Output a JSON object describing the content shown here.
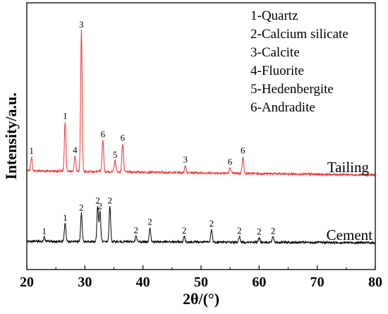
{
  "chart_data": {
    "type": "line",
    "xlabel": "2θ/(°)",
    "ylabel": "Intensity/a.u.",
    "xlim": [
      20,
      80
    ],
    "x_ticks": [
      "20",
      "30",
      "40",
      "50",
      "60",
      "70",
      "80"
    ],
    "y_ticks_visible": false,
    "grid": false,
    "legend": {
      "placement": "top-right",
      "entries": [
        "1-Quartz",
        "2-Calcium silicate",
        "3-Calcite",
        "4-Fluorite",
        "5-Hedenbergite",
        "6-Andradite"
      ]
    },
    "series": [
      {
        "name": "Tailing",
        "color": "#ee3333",
        "baseline_start": 14,
        "baseline_end": 8,
        "peaks": [
          {
            "x": 20.8,
            "height": 20,
            "label": "1"
          },
          {
            "x": 26.6,
            "height": 70,
            "label": "1"
          },
          {
            "x": 28.3,
            "height": 22,
            "label": "4"
          },
          {
            "x": 29.4,
            "height": 200,
            "label": "3"
          },
          {
            "x": 33.1,
            "height": 45,
            "label": "6"
          },
          {
            "x": 35.2,
            "height": 16,
            "label": "5"
          },
          {
            "x": 36.5,
            "height": 40,
            "label": "6"
          },
          {
            "x": 47.3,
            "height": 10,
            "label": "3"
          },
          {
            "x": 55.0,
            "height": 8,
            "label": "6"
          },
          {
            "x": 57.2,
            "height": 24,
            "label": "6"
          }
        ]
      },
      {
        "name": "Cement",
        "color": "#000000",
        "baseline_start": 10,
        "baseline_end": 8,
        "peaks": [
          {
            "x": 23.0,
            "height": 6,
            "label": "1"
          },
          {
            "x": 26.6,
            "height": 25,
            "label": "1"
          },
          {
            "x": 29.4,
            "height": 40,
            "label": "2"
          },
          {
            "x": 32.2,
            "height": 50,
            "label": "2"
          },
          {
            "x": 32.6,
            "height": 42,
            "label": "2"
          },
          {
            "x": 34.3,
            "height": 50,
            "label": "2"
          },
          {
            "x": 38.8,
            "height": 8,
            "label": "2"
          },
          {
            "x": 41.2,
            "height": 20,
            "label": "2"
          },
          {
            "x": 47.1,
            "height": 8,
            "label": "2"
          },
          {
            "x": 51.8,
            "height": 18,
            "label": "2"
          },
          {
            "x": 56.6,
            "height": 8,
            "label": "2"
          },
          {
            "x": 60.0,
            "height": 7,
            "label": "2"
          },
          {
            "x": 62.4,
            "height": 8,
            "label": "2"
          }
        ]
      }
    ]
  }
}
